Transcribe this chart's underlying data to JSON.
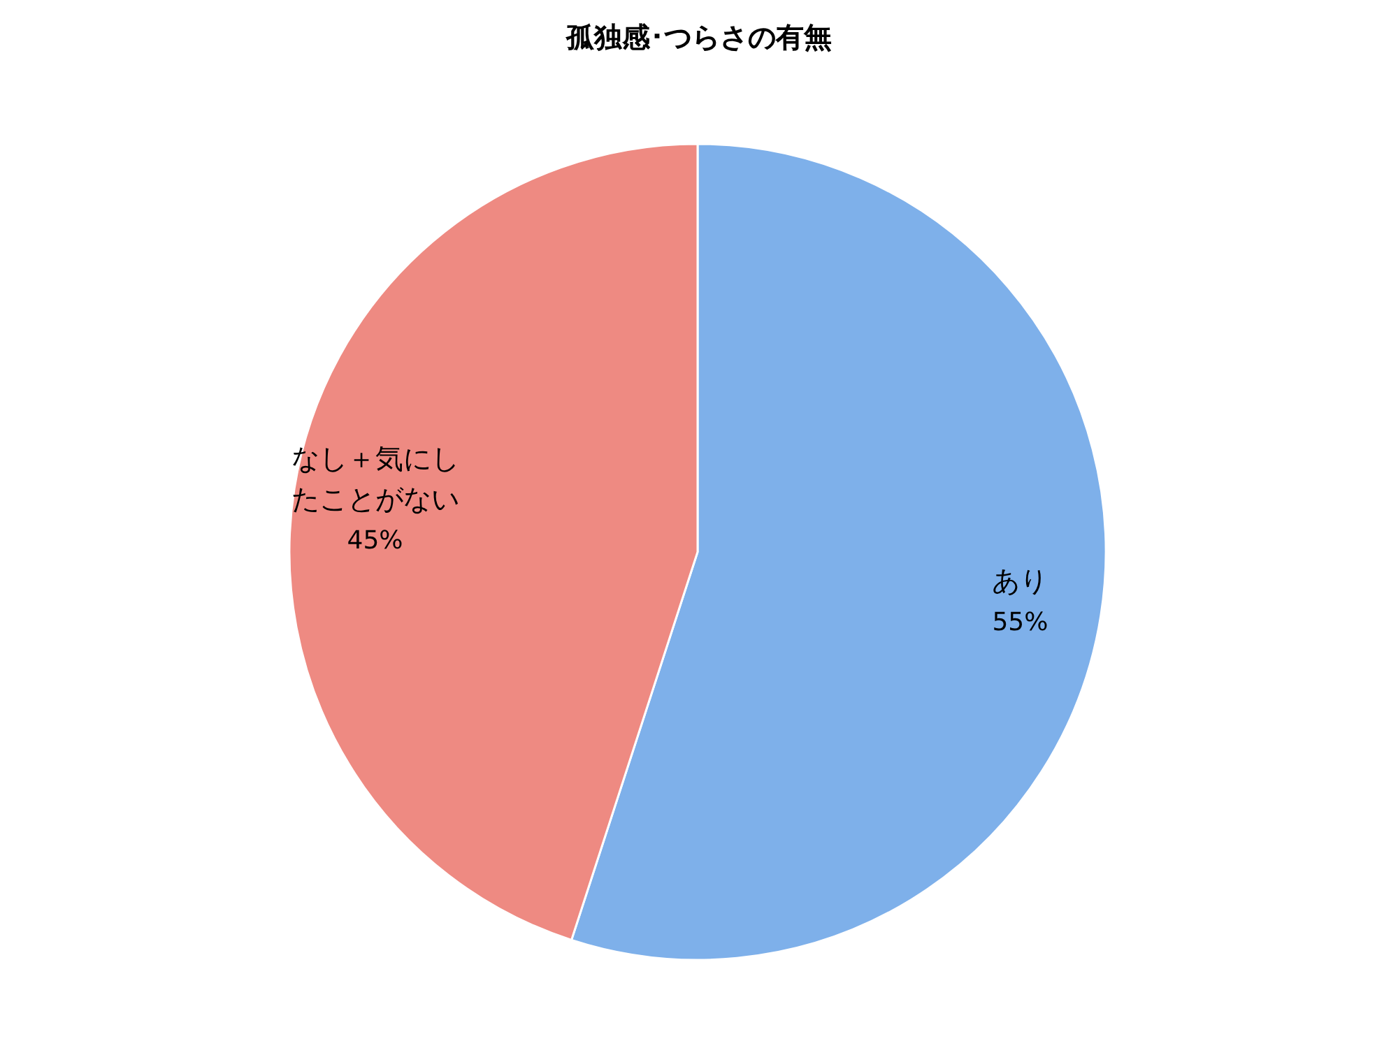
{
  "chart_data": {
    "type": "pie",
    "title": "孤独感･つらさの有無",
    "categories": [
      "あり",
      "なし＋気にしたことがない"
    ],
    "values": [
      55,
      45
    ],
    "colors": [
      "#7eb0ea",
      "#ee8a82"
    ],
    "value_labels": [
      "55%",
      "45%"
    ]
  }
}
